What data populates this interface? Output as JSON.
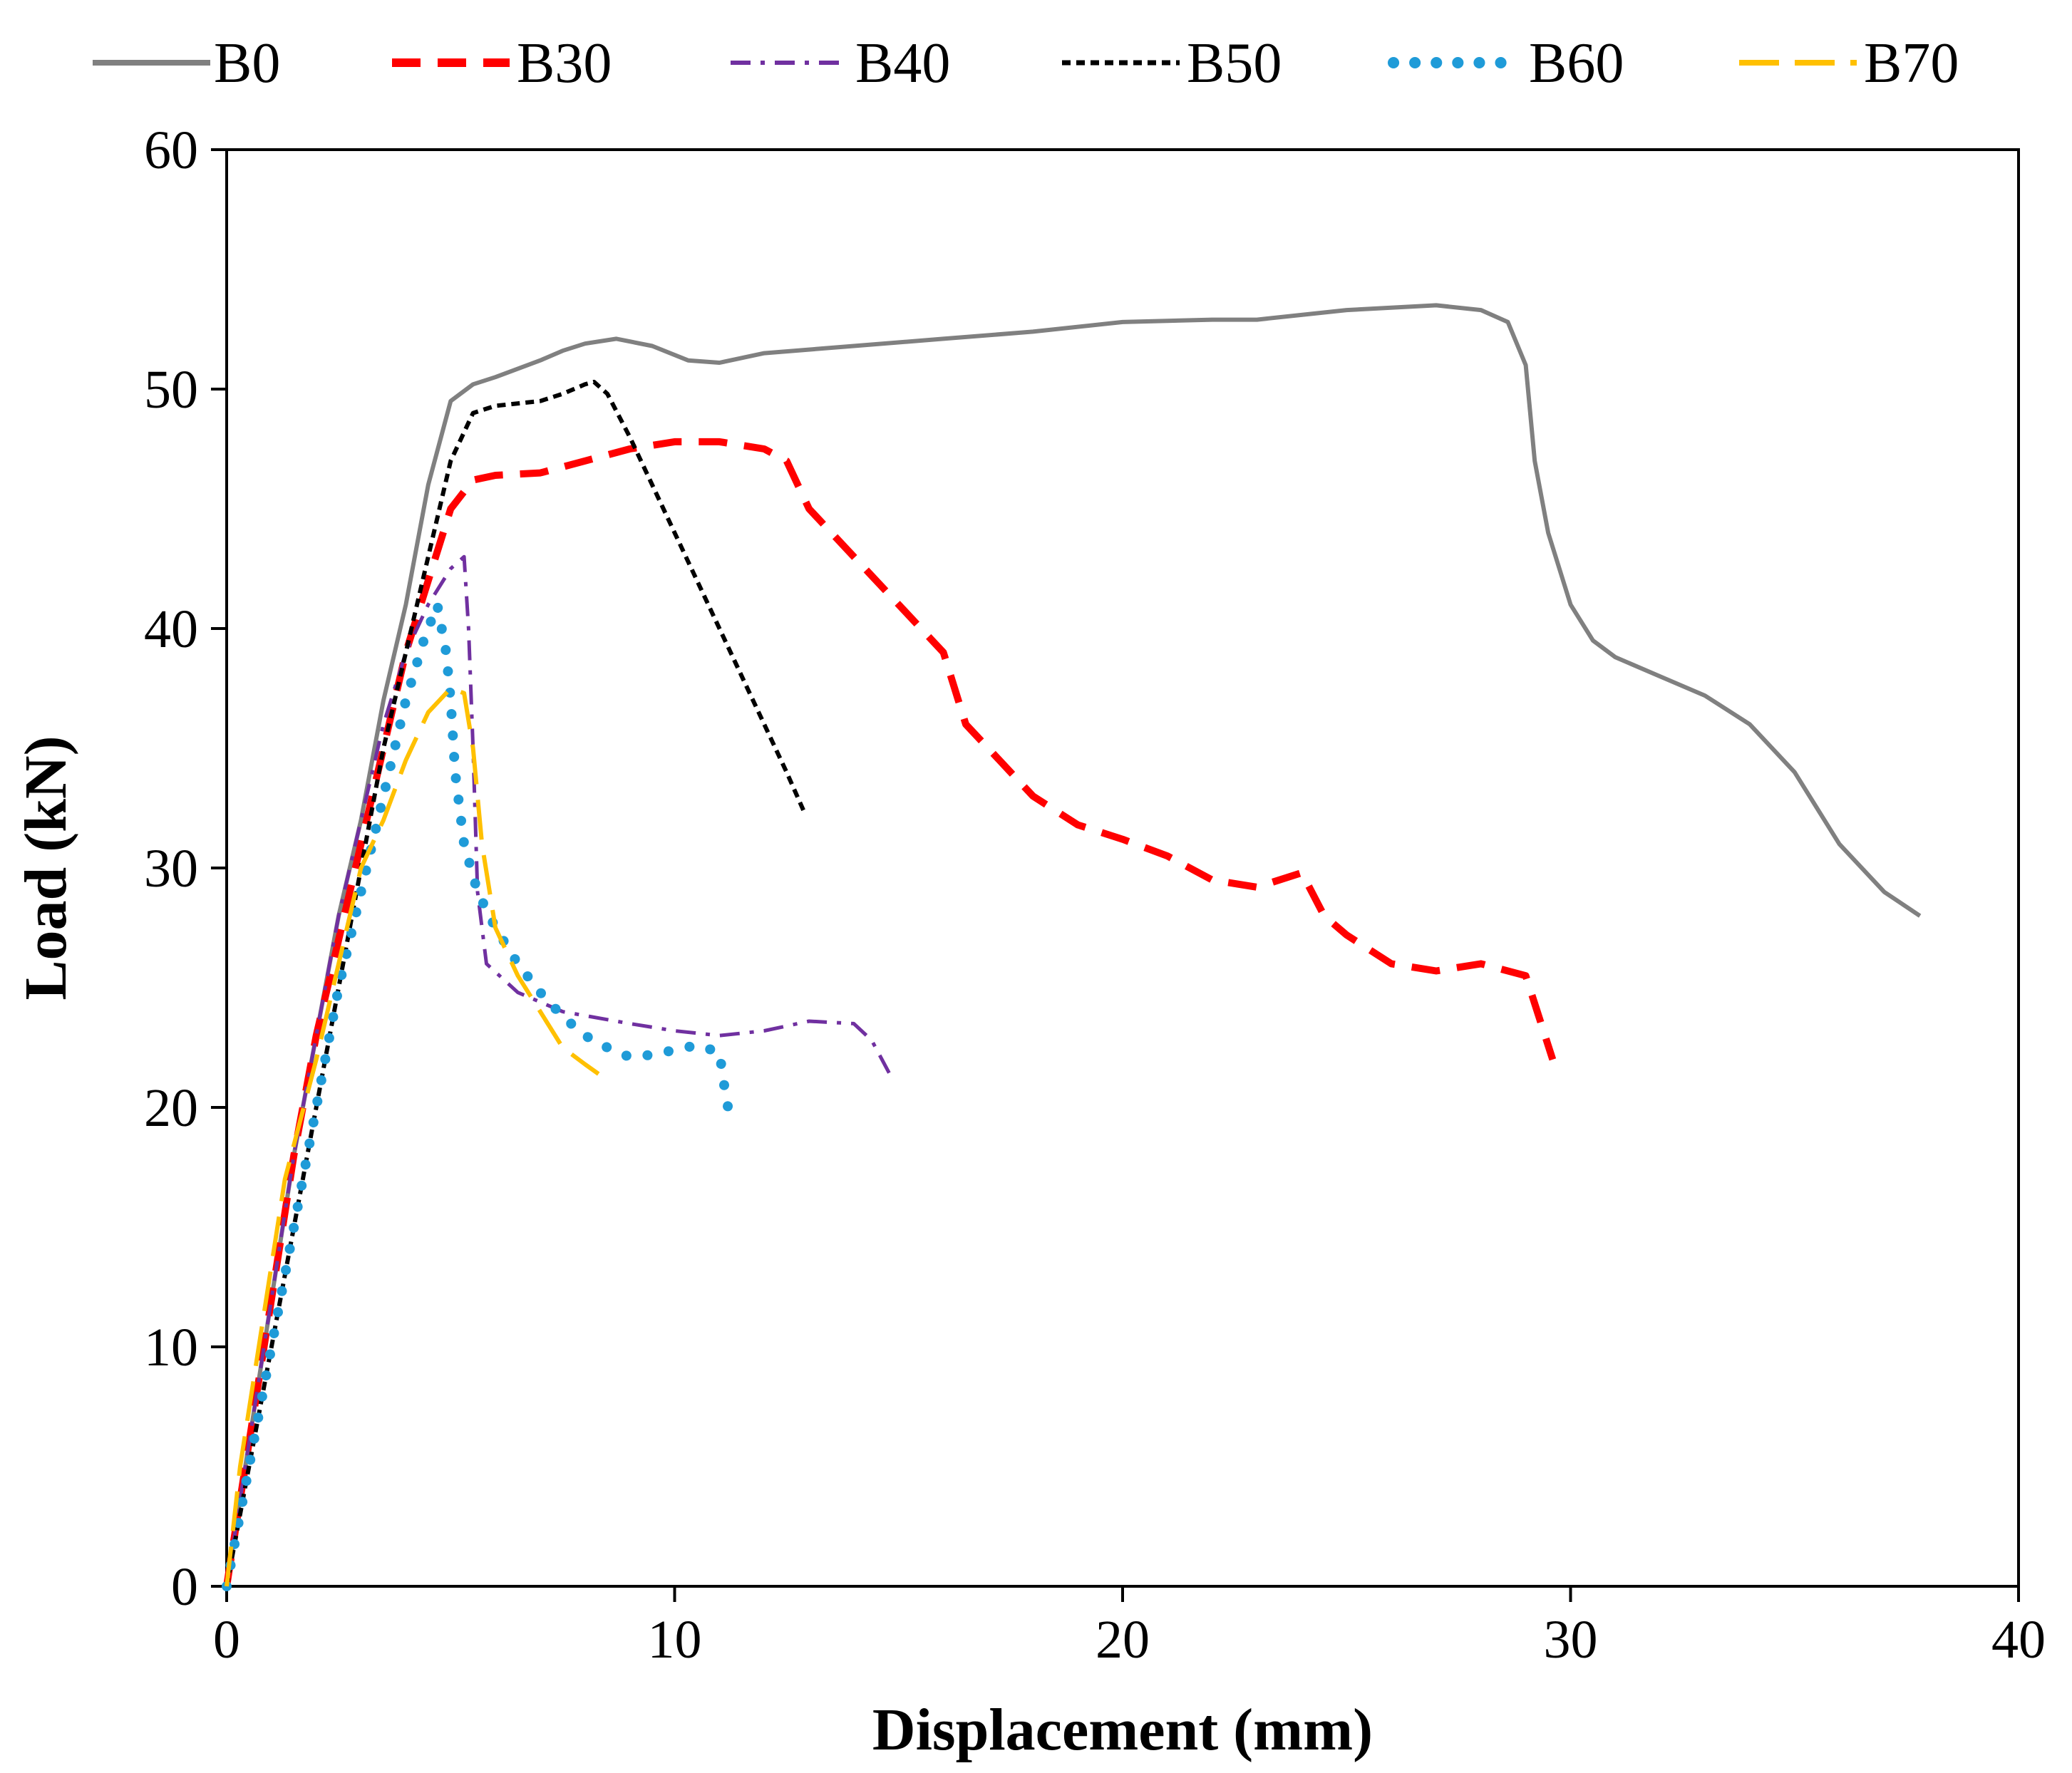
{
  "chart_data": {
    "type": "line",
    "title": "",
    "xlabel": "Displacement (mm)",
    "ylabel": "Load (kN)",
    "xlim": [
      0,
      40
    ],
    "ylim": [
      0,
      60
    ],
    "xticks": [
      0,
      10,
      20,
      30,
      40
    ],
    "yticks": [
      0,
      10,
      20,
      30,
      40,
      50,
      60
    ],
    "grid": false,
    "legend_position": "top",
    "series": [
      {
        "name": "B0",
        "color": "#808080",
        "dash": "solid",
        "points": [
          [
            0,
            0
          ],
          [
            0.5,
            6
          ],
          [
            1,
            12
          ],
          [
            1.5,
            18
          ],
          [
            2,
            23
          ],
          [
            2.5,
            28
          ],
          [
            3,
            32
          ],
          [
            3.5,
            37
          ],
          [
            4,
            41
          ],
          [
            4.5,
            46
          ],
          [
            5,
            49.5
          ],
          [
            5.5,
            50.2
          ],
          [
            6,
            50.5
          ],
          [
            7,
            51.2
          ],
          [
            7.5,
            51.6
          ],
          [
            8,
            51.9
          ],
          [
            8.7,
            52.1
          ],
          [
            9.5,
            51.8
          ],
          [
            10.3,
            51.2
          ],
          [
            11,
            51.1
          ],
          [
            12,
            51.5
          ],
          [
            14,
            51.8
          ],
          [
            16,
            52.1
          ],
          [
            18,
            52.4
          ],
          [
            20,
            52.8
          ],
          [
            22,
            52.9
          ],
          [
            23,
            52.9
          ],
          [
            25,
            53.3
          ],
          [
            27,
            53.5
          ],
          [
            28,
            53.3
          ],
          [
            28.6,
            52.8
          ],
          [
            29,
            51
          ],
          [
            29.2,
            47
          ],
          [
            29.5,
            44
          ],
          [
            30,
            41
          ],
          [
            30.5,
            39.5
          ],
          [
            31,
            38.8
          ],
          [
            32,
            38
          ],
          [
            33,
            37.2
          ],
          [
            34,
            36
          ],
          [
            35,
            34
          ],
          [
            36,
            31
          ],
          [
            37,
            29
          ],
          [
            37.8,
            28
          ]
        ]
      },
      {
        "name": "B30",
        "color": "#ff0000",
        "dash": "40,24",
        "points": [
          [
            0,
            0
          ],
          [
            0.5,
            6
          ],
          [
            1,
            12
          ],
          [
            1.5,
            18
          ],
          [
            2,
            23
          ],
          [
            2.5,
            27
          ],
          [
            3,
            31
          ],
          [
            3.5,
            35
          ],
          [
            4,
            39
          ],
          [
            4.5,
            42
          ],
          [
            5,
            45
          ],
          [
            5.5,
            46.2
          ],
          [
            6,
            46.4
          ],
          [
            7,
            46.5
          ],
          [
            8,
            47
          ],
          [
            9,
            47.5
          ],
          [
            10,
            47.8
          ],
          [
            11,
            47.8
          ],
          [
            12,
            47.5
          ],
          [
            12.5,
            47
          ],
          [
            13,
            45
          ],
          [
            14,
            43
          ],
          [
            15,
            41
          ],
          [
            16,
            39
          ],
          [
            16.5,
            36
          ],
          [
            17,
            35
          ],
          [
            18,
            33
          ],
          [
            19,
            31.8
          ],
          [
            20,
            31.2
          ],
          [
            21,
            30.5
          ],
          [
            22,
            29.5
          ],
          [
            23,
            29.2
          ],
          [
            24,
            29.8
          ],
          [
            24.5,
            28
          ],
          [
            25,
            27.2
          ],
          [
            26,
            26
          ],
          [
            27,
            25.7
          ],
          [
            28,
            26
          ],
          [
            29,
            25.5
          ],
          [
            29.6,
            22
          ]
        ]
      },
      {
        "name": "B40",
        "color": "#7030a0",
        "dash": "28,14,6,14",
        "points": [
          [
            0,
            0
          ],
          [
            0.5,
            6
          ],
          [
            1,
            12
          ],
          [
            1.5,
            18
          ],
          [
            2,
            23
          ],
          [
            2.5,
            28
          ],
          [
            3,
            32
          ],
          [
            3.5,
            36
          ],
          [
            4,
            39
          ],
          [
            4.5,
            41
          ],
          [
            5,
            42.5
          ],
          [
            5.3,
            43
          ],
          [
            5.4,
            40
          ],
          [
            5.5,
            35
          ],
          [
            5.6,
            29
          ],
          [
            5.8,
            26
          ],
          [
            6.5,
            24.8
          ],
          [
            7.5,
            24
          ],
          [
            9,
            23.5
          ],
          [
            10,
            23.2
          ],
          [
            11,
            23
          ],
          [
            12,
            23.2
          ],
          [
            13,
            23.6
          ],
          [
            14,
            23.5
          ],
          [
            14.4,
            22.8
          ],
          [
            14.8,
            21.4
          ]
        ]
      },
      {
        "name": "B50",
        "color": "#000000",
        "dash": "12,8",
        "points": [
          [
            0,
            0
          ],
          [
            0.5,
            5
          ],
          [
            1,
            10
          ],
          [
            1.5,
            15
          ],
          [
            2,
            20
          ],
          [
            2.5,
            25
          ],
          [
            3,
            30
          ],
          [
            3.5,
            35
          ],
          [
            4,
            39
          ],
          [
            4.5,
            43
          ],
          [
            5,
            47
          ],
          [
            5.5,
            49
          ],
          [
            6,
            49.3
          ],
          [
            7,
            49.5
          ],
          [
            7.5,
            49.8
          ],
          [
            8,
            50.2
          ],
          [
            8.2,
            50.3
          ],
          [
            8.5,
            49.8
          ],
          [
            9,
            48
          ],
          [
            10,
            44
          ],
          [
            11,
            40
          ],
          [
            12,
            36
          ],
          [
            12.5,
            34
          ],
          [
            12.9,
            32.3
          ]
        ]
      },
      {
        "name": "B60",
        "color": "#1f9bd8",
        "dash": "0.1,30",
        "points": [
          [
            0,
            0
          ],
          [
            0.5,
            5
          ],
          [
            1,
            10
          ],
          [
            1.5,
            15
          ],
          [
            2,
            20
          ],
          [
            2.5,
            25
          ],
          [
            3,
            29
          ],
          [
            3.5,
            33
          ],
          [
            4,
            37
          ],
          [
            4.4,
            39.5
          ],
          [
            4.7,
            41
          ],
          [
            4.9,
            39
          ],
          [
            5,
            37
          ],
          [
            5.1,
            34
          ],
          [
            5.3,
            31
          ],
          [
            5.6,
            29
          ],
          [
            6,
            27.5
          ],
          [
            6.5,
            26
          ],
          [
            7,
            24.8
          ],
          [
            7.5,
            23.8
          ],
          [
            8,
            23
          ],
          [
            8.5,
            22.5
          ],
          [
            9,
            22.1
          ],
          [
            9.5,
            22.2
          ],
          [
            10,
            22.4
          ],
          [
            10.5,
            22.6
          ],
          [
            11,
            22.3
          ],
          [
            11.1,
            21
          ],
          [
            11.2,
            19.9
          ]
        ]
      },
      {
        "name": "B70",
        "color": "#ffc000",
        "dash": "56,22",
        "points": [
          [
            0,
            0
          ],
          [
            0.3,
            5
          ],
          [
            0.8,
            11
          ],
          [
            1.3,
            17
          ],
          [
            2,
            22
          ],
          [
            2.5,
            26
          ],
          [
            3,
            30
          ],
          [
            3.5,
            32
          ],
          [
            4,
            34.5
          ],
          [
            4.5,
            36.5
          ],
          [
            5,
            37.5
          ],
          [
            5.3,
            37.3
          ],
          [
            5.5,
            35
          ],
          [
            5.7,
            31
          ],
          [
            6,
            27.5
          ],
          [
            6.5,
            25.5
          ],
          [
            7,
            24
          ],
          [
            7.5,
            22.5
          ],
          [
            8,
            21.8
          ],
          [
            8.3,
            21.4
          ]
        ]
      }
    ]
  }
}
